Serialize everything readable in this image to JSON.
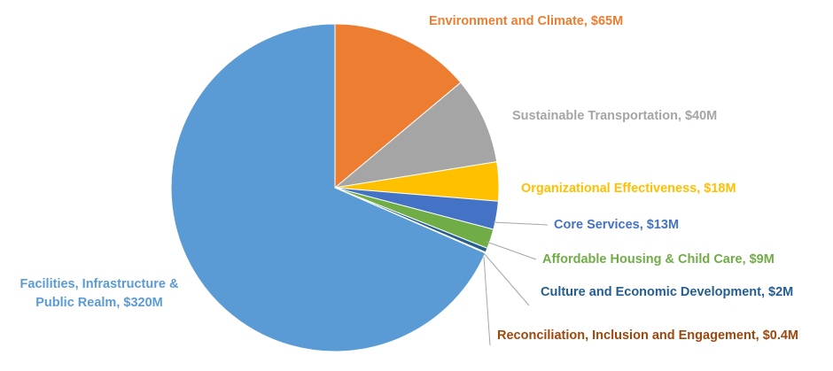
{
  "chart_data": {
    "type": "pie",
    "title": "",
    "legend": "none",
    "slices": [
      {
        "name": "Environment and Climate",
        "value": 65,
        "label": "Environment and Climate, $65M",
        "color": "#ED7D31"
      },
      {
        "name": "Sustainable Transportation",
        "value": 40,
        "label": "Sustainable Transportation, $40M",
        "color": "#A5A5A5"
      },
      {
        "name": "Organizational Effectiveness",
        "value": 18,
        "label": "Organizational Effectiveness, $18M",
        "color": "#FFC000"
      },
      {
        "name": "Core Services",
        "value": 13,
        "label": "Core Services, $13M",
        "color": "#4472C4"
      },
      {
        "name": "Affordable Housing & Child Care",
        "value": 9,
        "label": "Affordable Housing & Child Care, $9M",
        "color": "#70AD47"
      },
      {
        "name": "Culture and Economic Development",
        "value": 2,
        "label": "Culture and Economic Development, $2M",
        "color": "#255E91"
      },
      {
        "name": "Reconciliation, Inclusion and Engagement",
        "value": 0.4,
        "label": "Reconciliation, Inclusion and Engagement, $0.4M",
        "color": "#9E480E"
      },
      {
        "name": "Facilities, Infrastructure & Public Realm",
        "value": 320,
        "label": "Facilities, Infrastructure & Public Realm, $320M",
        "label_lines": [
          "Facilities, Infrastructure &",
          "Public Realm, $320M"
        ],
        "color": "#5B9BD5"
      }
    ]
  }
}
